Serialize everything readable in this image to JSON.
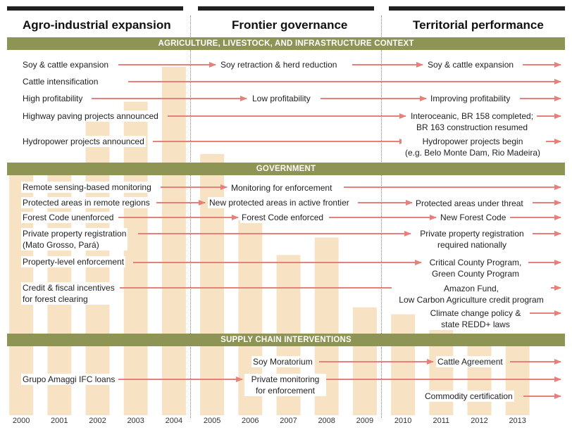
{
  "phases": [
    {
      "name": "Agro-industrial expansion"
    },
    {
      "name": "Frontier governance"
    },
    {
      "name": "Territorial performance"
    }
  ],
  "sections": {
    "agri": "AGRICULTURE, LIVESTOCK, AND INFRASTRUCTURE CONTEXT",
    "gov": "GOVERNMENT",
    "supply": "SUPPLY CHAIN INTERVENTIONS"
  },
  "years": [
    "2000",
    "2001",
    "2002",
    "2003",
    "2004",
    "2005",
    "2006",
    "2007",
    "2008",
    "2009",
    "2010",
    "2011",
    "2012",
    "2013"
  ],
  "bar_values": [
    0.72,
    0.72,
    0.86,
    0.9,
    1.0,
    0.75,
    0.56,
    0.46,
    0.51,
    0.31,
    0.29,
    0.26,
    0.2,
    0.23
  ],
  "labels": {
    "soy_exp": "Soy & cattle expansion",
    "soy_retr": "Soy retraction & herd reduction",
    "soy_exp2": "Soy & cattle expansion",
    "cattle_int": "Cattle intensification",
    "high_prof": "High profitability",
    "low_prof": "Low profitability",
    "impr_prof": "Improving profitability",
    "hwy_ann": "Highway paving projects announced",
    "hwy_done_1": "Interoceanic, BR 158 completed;",
    "hwy_done_2": "BR 163 construction resumed",
    "hydro_ann": "Hydropower projects announced",
    "hydro_begin_1": "Hydropower projects begin",
    "hydro_begin_2": "(e.g. Belo Monte Dam, Rio Madeira)",
    "remote": "Remote sensing-based monitoring",
    "monitor": "Monitoring for enforcement",
    "pa_remote": "Protected areas in remote regions",
    "pa_new": "New protected areas in active frontier",
    "pa_threat": "Protected areas under threat",
    "fc_unenf": "Forest Code unenforced",
    "fc_enf": "Forest Code enforced",
    "fc_new": "New Forest Code",
    "ppr_1": "Private property registration",
    "ppr_2": "(Mato Grosso, Pará)",
    "ppr_nat_1": "Private property registration",
    "ppr_nat_2": "required nationally",
    "ple": "Property-level enforcement",
    "ccp_1": "Critical County Program,",
    "ccp_2": "Green County Program",
    "credit_1": "Credit & fiscal incentives",
    "credit_2": "for forest clearing",
    "af_1": "Amazon Fund,",
    "af_2": "Low Carbon Agriculture credit program",
    "ccpol_1": "Climate change policy &",
    "ccpol_2": "state REDD+ laws",
    "soy_mor": "Soy Moratorium",
    "cattle_agr": "Cattle Agreement",
    "amaggi": "Grupo Amaggi IFC loans",
    "pm_1": "Private monitoring",
    "pm_2": "for enforcement",
    "commodity": "Commodity certification"
  },
  "colors": {
    "bar": "#f7e3c4",
    "band": "#8d9454",
    "arrow": "#e8807a",
    "phase_bar": "#1f1f1f"
  }
}
